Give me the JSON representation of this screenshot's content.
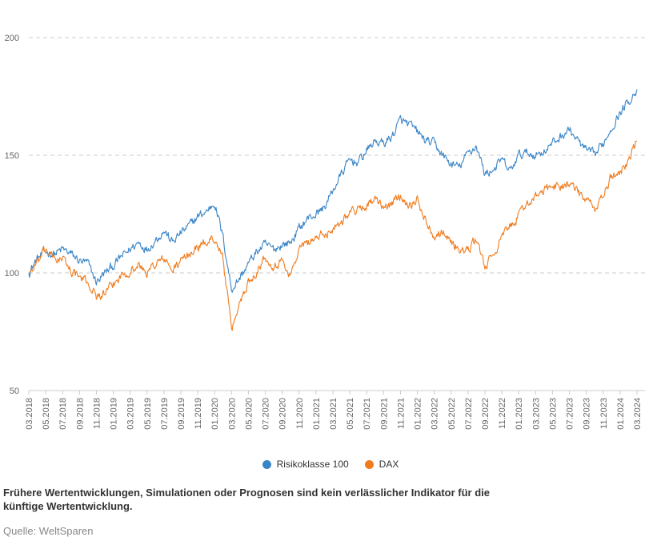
{
  "chart_data": {
    "type": "line",
    "title": "",
    "xlabel": "",
    "ylabel": "",
    "ylim": [
      50,
      200
    ],
    "yticks": [
      50,
      100,
      150,
      200
    ],
    "grid": true,
    "legend_position": "bottom-center",
    "x_tick_labels": [
      "03.2018",
      "05.2018",
      "07.2018",
      "09.2018",
      "11.2018",
      "01.2019",
      "03.2019",
      "05.2019",
      "07.2019",
      "09.2019",
      "11.2019",
      "01.2020",
      "03.2020",
      "05.2020",
      "07.2020",
      "09.2020",
      "11.2020",
      "01.2021",
      "03.2021",
      "05.2021",
      "07.2021",
      "09.2021",
      "11.2021",
      "01.2022",
      "03.2022",
      "05.2022",
      "07.2022",
      "09.2022",
      "11.2022",
      "01.2023",
      "03.2023",
      "05.2023",
      "07.2023",
      "09.2023",
      "11.2023",
      "01.2024",
      "03.2024"
    ],
    "x": [
      "03.2018",
      "04.2018",
      "05.2018",
      "06.2018",
      "07.2018",
      "08.2018",
      "09.2018",
      "10.2018",
      "11.2018",
      "12.2018",
      "01.2019",
      "02.2019",
      "03.2019",
      "04.2019",
      "05.2019",
      "06.2019",
      "07.2019",
      "08.2019",
      "09.2019",
      "10.2019",
      "11.2019",
      "12.2019",
      "01.2020",
      "02.2020",
      "03.2020",
      "04.2020",
      "05.2020",
      "06.2020",
      "07.2020",
      "08.2020",
      "09.2020",
      "10.2020",
      "11.2020",
      "12.2020",
      "01.2021",
      "02.2021",
      "03.2021",
      "04.2021",
      "05.2021",
      "06.2021",
      "07.2021",
      "08.2021",
      "09.2021",
      "10.2021",
      "11.2021",
      "12.2021",
      "01.2022",
      "02.2022",
      "03.2022",
      "04.2022",
      "05.2022",
      "06.2022",
      "07.2022",
      "08.2022",
      "09.2022",
      "10.2022",
      "11.2022",
      "12.2022",
      "01.2023",
      "02.2023",
      "03.2023",
      "04.2023",
      "05.2023",
      "06.2023",
      "07.2023",
      "08.2023",
      "09.2023",
      "10.2023",
      "11.2023",
      "12.2023",
      "01.2024",
      "02.2024",
      "03.2024"
    ],
    "series": [
      {
        "name": "Risikoklasse 100",
        "color": "#3a85c6",
        "values": [
          100,
          106,
          109,
          108,
          110,
          108,
          105,
          104,
          96,
          100,
          103,
          107,
          110,
          113,
          110,
          114,
          118,
          113,
          117,
          120,
          124,
          126,
          130,
          115,
          93,
          98,
          104,
          109,
          112,
          110,
          112,
          113,
          119,
          123,
          125,
          128,
          135,
          142,
          148,
          147,
          152,
          156,
          155,
          158,
          165,
          163,
          160,
          156,
          155,
          150,
          146,
          145,
          151,
          154,
          142,
          144,
          148,
          143,
          150,
          151,
          150,
          152,
          155,
          158,
          161,
          156,
          152,
          150,
          155,
          162,
          168,
          173,
          178
        ]
      },
      {
        "name": "DAX",
        "color": "#f07c1e",
        "values": [
          100,
          104,
          110,
          106,
          106,
          101,
          98,
          96,
          90,
          91,
          95,
          99,
          101,
          103,
          100,
          104,
          106,
          101,
          105,
          108,
          111,
          113,
          115,
          106,
          75,
          88,
          96,
          101,
          107,
          103,
          105,
          99,
          110,
          113,
          115,
          116,
          119,
          122,
          126,
          127,
          129,
          131,
          127,
          130,
          133,
          129,
          131,
          122,
          116,
          118,
          113,
          110,
          109,
          115,
          102,
          108,
          115,
          120,
          124,
          130,
          132,
          135,
          137,
          137,
          138,
          134,
          131,
          127,
          133,
          141,
          143,
          148,
          156
        ]
      }
    ]
  },
  "legend": {
    "items": [
      {
        "label": "Risikoklasse 100",
        "color": "#3a85c6"
      },
      {
        "label": "DAX",
        "color": "#f07c1e"
      }
    ]
  },
  "footer": {
    "disclaimer": "Frühere Wertentwicklungen, Simulationen oder Prognosen sind kein verlässlicher Indikator für die künftige Wertentwicklung.",
    "source": "Quelle: WeltSparen"
  }
}
